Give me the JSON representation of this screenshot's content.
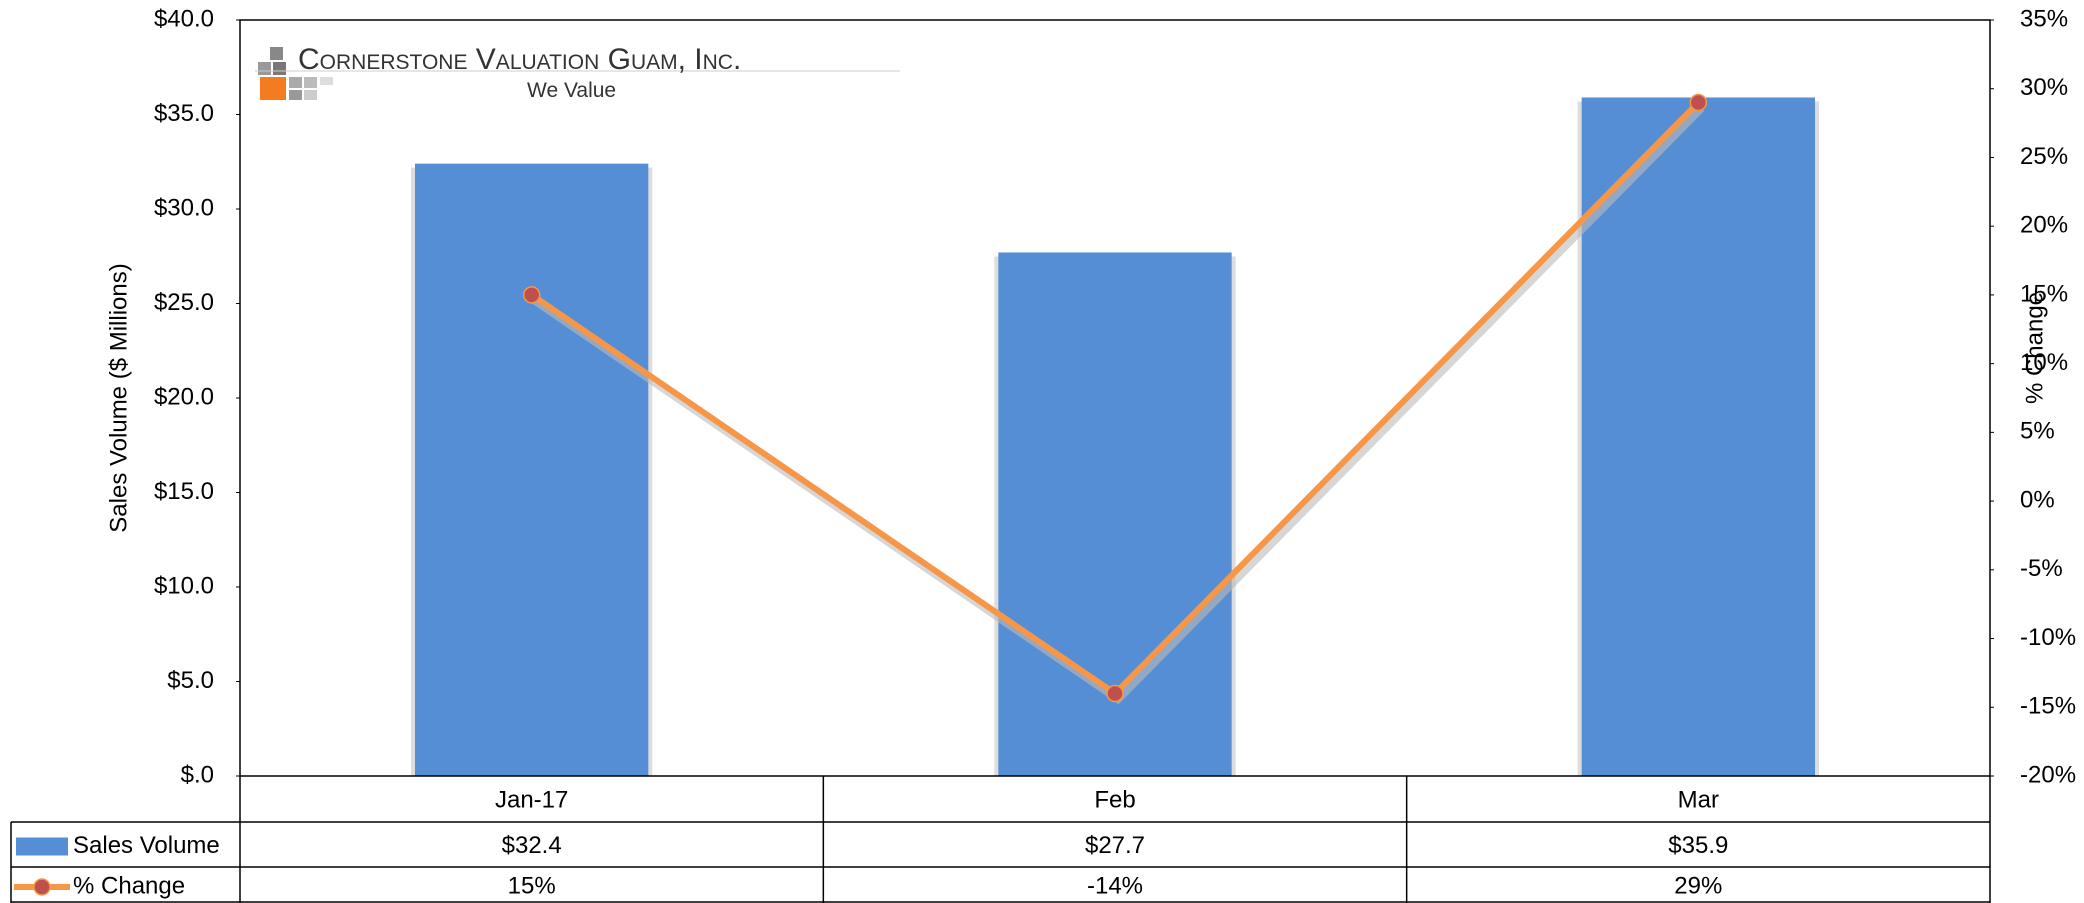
{
  "logo": {
    "name": "Cornerstone Valuation Guam, Inc.",
    "tagline": "We Value"
  },
  "chart_data": {
    "type": "bar",
    "categories": [
      "Jan-17",
      "Feb",
      "Mar"
    ],
    "series": [
      {
        "name": "Sales Volume",
        "type": "bar",
        "color": "#558ed5",
        "values": [
          32.4,
          27.7,
          35.9
        ],
        "value_labels": [
          "$32.4",
          "$27.7",
          "$35.9"
        ]
      },
      {
        "name": "% Change",
        "type": "line",
        "axis": "y2",
        "color": "#f79646",
        "marker_color": "#c0504d",
        "values": [
          15,
          -14,
          29
        ],
        "value_labels": [
          "15%",
          "-14%",
          "29%"
        ]
      }
    ],
    "y_axis_label": "Sales Volume ($ Millions)",
    "y2_axis_label": "% Change",
    "ylim": [
      0,
      40
    ],
    "yticks": [
      {
        "value": 0,
        "label": "$.0"
      },
      {
        "value": 5,
        "label": "$5.0"
      },
      {
        "value": 10,
        "label": "$10.0"
      },
      {
        "value": 15,
        "label": "$15.0"
      },
      {
        "value": 20,
        "label": "$20.0"
      },
      {
        "value": 25,
        "label": "$25.0"
      },
      {
        "value": 30,
        "label": "$30.0"
      },
      {
        "value": 35,
        "label": "$35.0"
      },
      {
        "value": 40,
        "label": "$40.0"
      }
    ],
    "y2lim": [
      -20,
      35
    ],
    "y2ticks": [
      {
        "value": -20,
        "label": "-20%"
      },
      {
        "value": -15,
        "label": "-15%"
      },
      {
        "value": -10,
        "label": "-10%"
      },
      {
        "value": -5,
        "label": "-5%"
      },
      {
        "value": 0,
        "label": "0%"
      },
      {
        "value": 5,
        "label": "5%"
      },
      {
        "value": 10,
        "label": "10%"
      },
      {
        "value": 15,
        "label": "15%"
      },
      {
        "value": 20,
        "label": "20%"
      },
      {
        "value": 25,
        "label": "25%"
      },
      {
        "value": 30,
        "label": "30%"
      },
      {
        "value": 35,
        "label": "35%"
      }
    ]
  }
}
